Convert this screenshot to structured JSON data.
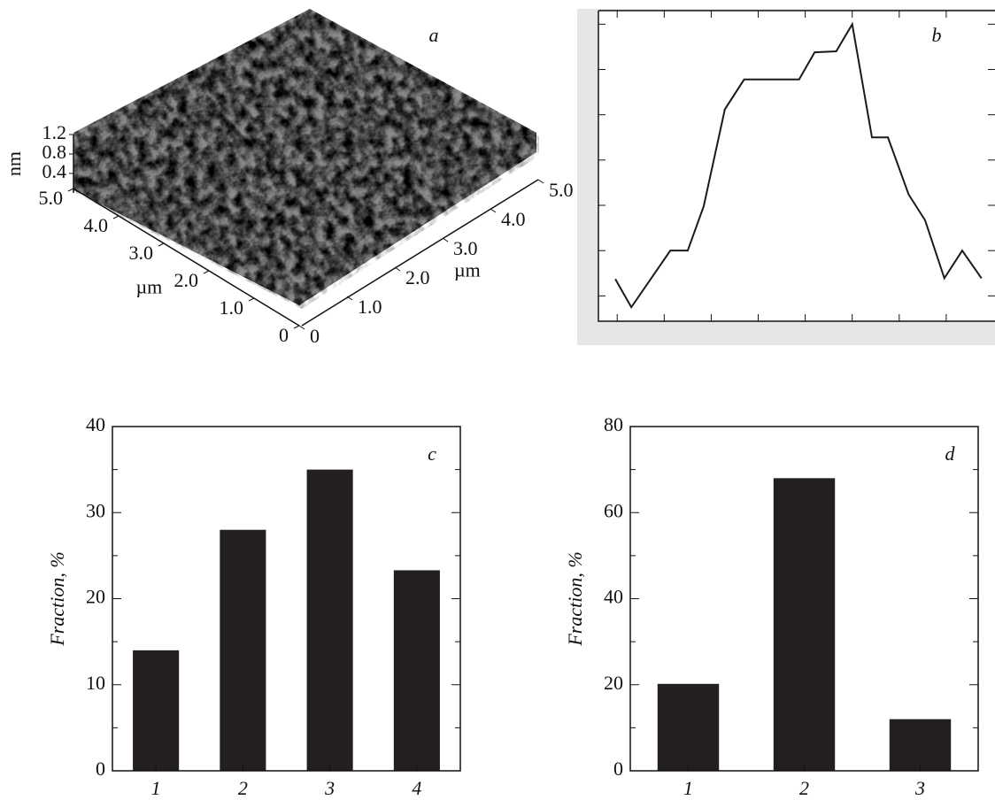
{
  "chart_data": [
    {
      "type": "surface",
      "label": "a",
      "x_label": "µm",
      "y_label": "µm",
      "z_label": "nm",
      "xlim": [
        0,
        5
      ],
      "ylim": [
        0,
        5
      ],
      "zlim": [
        0,
        1.2
      ],
      "xticks": [
        0,
        {
          "value": 1,
          "label": "1.0"
        },
        {
          "value": 2,
          "label": "2.0"
        },
        {
          "value": 3,
          "label": "3.0"
        },
        {
          "value": 4,
          "label": "4.0"
        },
        {
          "value": 5,
          "label": "5.0"
        }
      ],
      "yticks": [
        0,
        {
          "value": 1,
          "label": "1.0"
        },
        {
          "value": 2,
          "label": "2.0"
        },
        {
          "value": 3,
          "label": "3.0"
        },
        {
          "value": 4,
          "label": "4.0"
        },
        {
          "value": 5,
          "label": "5.0"
        }
      ],
      "zticks": [
        0.4,
        0.8,
        1.2
      ]
    },
    {
      "type": "line",
      "label": "b",
      "color": "#1a1a1a",
      "x": [
        0.96,
        1.3,
        2.13,
        2.5,
        2.84,
        3.29,
        3.7,
        4.87,
        5.2,
        5.66,
        6.0,
        6.42,
        6.76,
        7.2,
        7.55,
        7.96,
        8.34,
        8.75
      ],
      "values": [
        1.37,
        0.75,
        2.0,
        2.0,
        2.98,
        5.12,
        5.78,
        5.78,
        6.38,
        6.4,
        7.0,
        4.5,
        4.5,
        3.24,
        2.67,
        1.39,
        2.0,
        1.39
      ],
      "xlim": [
        0.6,
        9
      ],
      "ylim": [
        0.44,
        7.3
      ],
      "xticks": [
        1,
        2,
        3,
        4,
        5,
        6,
        7,
        8
      ],
      "yticks": [
        1,
        2,
        3,
        4,
        5,
        6,
        7
      ]
    },
    {
      "type": "bar",
      "label": "c",
      "y_label": "Fraction, %",
      "color": "#231f20",
      "categories": [
        "1",
        "2",
        "3",
        "4"
      ],
      "values": [
        14,
        28,
        35,
        23.3
      ],
      "ylim": [
        0,
        40
      ],
      "yticks": [
        0,
        10,
        20,
        30,
        40
      ],
      "yminorticks": [
        5,
        15,
        25,
        35
      ]
    },
    {
      "type": "bar",
      "label": "d",
      "y_label": "Fraction, %",
      "color": "#231f20",
      "categories": [
        "1",
        "2",
        "3"
      ],
      "values": [
        20.2,
        68,
        12
      ],
      "ylim": [
        0,
        80
      ],
      "yticks": [
        0,
        20,
        40,
        60,
        80
      ],
      "yminorticks": [
        10,
        30,
        50,
        70
      ]
    }
  ]
}
